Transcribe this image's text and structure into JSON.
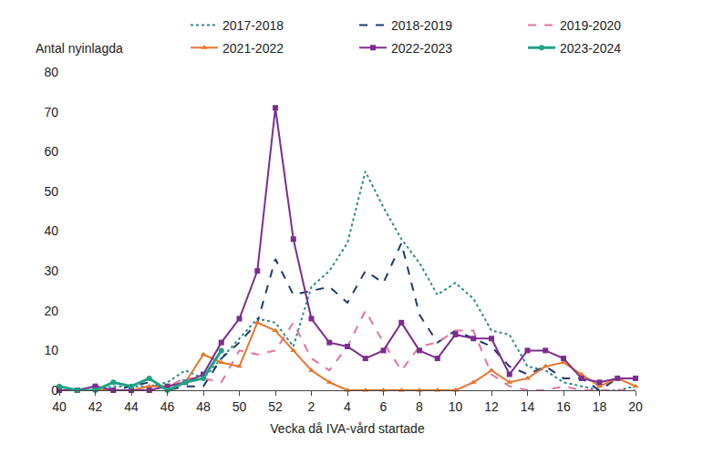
{
  "chart_data": {
    "type": "line",
    "y_label": "Antal nyinlagda",
    "x_label": "Vecka då IVA-vård startade",
    "categories": [
      "40",
      null,
      "42",
      null,
      "44",
      null,
      "46",
      null,
      "48",
      null,
      "50",
      null,
      "52",
      null,
      "2",
      null,
      "4",
      null,
      "6",
      null,
      "8",
      null,
      "10",
      null,
      "12",
      null,
      "14",
      null,
      "16",
      null,
      "18",
      null,
      "20"
    ],
    "ylim": [
      0,
      80
    ],
    "yticks": [
      0,
      10,
      20,
      30,
      40,
      50,
      60,
      70,
      80
    ],
    "grid": false,
    "legend": "top",
    "series": [
      {
        "name": "2017-2018",
        "color": "#2e8b8b",
        "line_style": "dotted",
        "marker": "none",
        "values": [
          0,
          0,
          0,
          1,
          1,
          1,
          2,
          5,
          3,
          8,
          13,
          18,
          17,
          11,
          26,
          30,
          37,
          55,
          46,
          38,
          32,
          24,
          27,
          23,
          15,
          14,
          6,
          5,
          2,
          1,
          0,
          0,
          1
        ]
      },
      {
        "name": "2018-2019",
        "color": "#1f3a6e",
        "line_style": "dashed",
        "marker": "none",
        "values": [
          0,
          0,
          1,
          0,
          1,
          2,
          0,
          1,
          1,
          8,
          12,
          17,
          33,
          24,
          25,
          26,
          22,
          30,
          27,
          37,
          19,
          12,
          15,
          13,
          11,
          6,
          4,
          6,
          3,
          3,
          0,
          3,
          3
        ]
      },
      {
        "name": "2019-2020",
        "color": "#e8739e",
        "line_style": "dashed",
        "marker": "none",
        "values": [
          0,
          0,
          0,
          0,
          0,
          1,
          1,
          3,
          3,
          2,
          10,
          9,
          10,
          17,
          8,
          5,
          11,
          20,
          12,
          5,
          11,
          12,
          15,
          15,
          4,
          1,
          0,
          0,
          1,
          0,
          0,
          0,
          0
        ]
      },
      {
        "name": "2021-2022",
        "color": "#e8762d",
        "line_style": "solid",
        "marker": "triangle",
        "values": [
          0,
          0,
          0,
          0,
          0,
          1,
          1,
          2,
          9,
          7,
          6,
          17,
          15,
          10,
          5,
          2,
          0,
          0,
          0,
          0,
          0,
          0,
          0,
          2,
          5,
          2,
          3,
          6,
          7,
          4,
          1,
          3,
          1
        ]
      },
      {
        "name": "2022-2023",
        "color": "#7b2d8e",
        "line_style": "solid",
        "marker": "square",
        "values": [
          0,
          0,
          1,
          0,
          0,
          0,
          1,
          2,
          4,
          12,
          18,
          30,
          71,
          38,
          18,
          12,
          11,
          8,
          10,
          17,
          10,
          8,
          14,
          13,
          13,
          4,
          10,
          10,
          8,
          3,
          2,
          3,
          3
        ]
      },
      {
        "name": "2023-2024",
        "color": "#21a286",
        "line_style": "solid",
        "marker": "circle",
        "values": [
          1,
          0,
          0,
          2,
          1,
          3,
          0,
          2,
          3,
          10,
          null,
          null,
          null,
          null,
          null,
          null,
          null,
          null,
          null,
          null,
          null,
          null,
          null,
          null,
          null,
          null,
          null,
          null,
          null,
          null,
          null,
          null,
          null
        ]
      }
    ]
  }
}
